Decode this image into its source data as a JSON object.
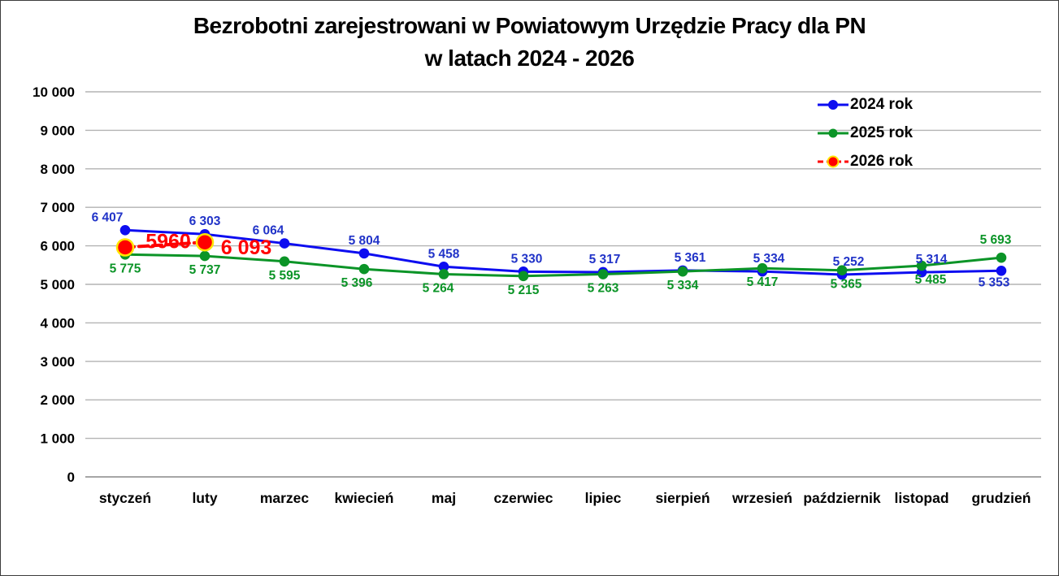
{
  "title": {
    "line1": "Bezrobotni zarejestrowani w Powiatowym Urzędzie Pracy dla PN",
    "line2": "w latach 2024 - 2026"
  },
  "chart_data": {
    "type": "line",
    "title": "Bezrobotni zarejestrowani w Powiatowym Urzędzie Pracy dla PN w latach 2024 - 2026",
    "xlabel": "",
    "ylabel": "",
    "grid": true,
    "legend_position": "top-right",
    "ylim": [
      0,
      10000
    ],
    "categories": [
      "styczeń",
      "luty",
      "marzec",
      "kwiecień",
      "maj",
      "czerwiec",
      "lipiec",
      "sierpień",
      "wrzesień",
      "październik",
      "listopad",
      "grudzień"
    ],
    "y_ticks": [
      {
        "value": 0,
        "label": "0"
      },
      {
        "value": 1000,
        "label": "1 000"
      },
      {
        "value": 2000,
        "label": "2 000"
      },
      {
        "value": 3000,
        "label": "3 000"
      },
      {
        "value": 4000,
        "label": "4 000"
      },
      {
        "value": 5000,
        "label": "5 000"
      },
      {
        "value": 6000,
        "label": "6 000"
      },
      {
        "value": 7000,
        "label": "7 000"
      },
      {
        "value": 8000,
        "label": "8 000"
      },
      {
        "value": 9000,
        "label": "9 000"
      },
      {
        "value": 10000,
        "label": "10 000"
      }
    ],
    "series": [
      {
        "name": "2024 rok",
        "color": "#0d0df0",
        "label_color": "#2133c8",
        "dashed": false,
        "values": [
          6407,
          6303,
          6064,
          5804,
          5458,
          5330,
          5317,
          5361,
          5334,
          5252,
          5314,
          5353
        ],
        "labels": [
          "6 407",
          "6 303",
          "6 064",
          "5 804",
          "5 458",
          "5 330",
          "5 317",
          "5 361",
          "5 334",
          "5 252",
          "5 314",
          "5 353"
        ],
        "label_pos": [
          "above",
          "above",
          "above",
          "above",
          "above",
          "above",
          "above",
          "above",
          "above",
          "above",
          "above",
          "below"
        ],
        "label_dx": [
          -22,
          0,
          -20,
          0,
          0,
          4,
          2,
          9,
          8,
          8,
          12,
          -9
        ]
      },
      {
        "name": "2025 rok",
        "color": "#0b9427",
        "label_color": "#0b9427",
        "dashed": false,
        "values": [
          5775,
          5737,
          5595,
          5396,
          5264,
          5215,
          5263,
          5334,
          5417,
          5365,
          5485,
          5693
        ],
        "labels": [
          "5 775",
          "5 737",
          "5 595",
          "5 396",
          "5 264",
          "5 215",
          "5 263",
          "5 334",
          "5 417",
          "5 365",
          "5 485",
          "5 693"
        ],
        "label_pos": [
          "below",
          "below",
          "below",
          "below",
          "below",
          "below",
          "below",
          "below",
          "below",
          "below",
          "below",
          "above"
        ],
        "label_dx": [
          0,
          0,
          0,
          -9,
          -7,
          0,
          0,
          0,
          0,
          5,
          11,
          -7
        ]
      },
      {
        "name": "2026 rok",
        "color": "#ff0000",
        "label_color": "#ff0000",
        "marker_ring": "#ffe600",
        "dashed": true,
        "values": [
          5960,
          6093,
          null,
          null,
          null,
          null,
          null,
          null,
          null,
          null,
          null,
          null
        ],
        "labels": [
          "5960",
          "6 093"
        ],
        "label_pos": [
          "between",
          "right"
        ],
        "label_dx": [
          0,
          0
        ]
      }
    ],
    "colors": {
      "gridline": "#b3b3b3",
      "axis_line": "#9a9a9a",
      "axis_text": "#000000"
    }
  }
}
